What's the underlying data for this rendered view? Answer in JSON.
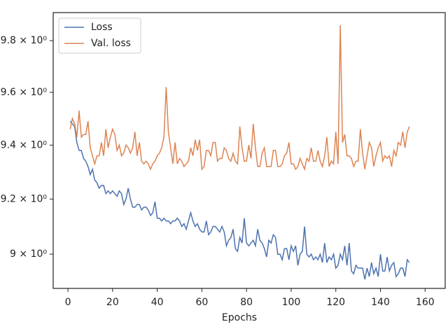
{
  "chart_data": {
    "type": "line",
    "x_label": "Epochs",
    "log_y": true,
    "grid": false,
    "legend": "upper left",
    "x": [
      1,
      2,
      3,
      4,
      5,
      6,
      7,
      8,
      9,
      10,
      11,
      12,
      13,
      14,
      15,
      16,
      17,
      18,
      19,
      20,
      21,
      22,
      23,
      24,
      25,
      26,
      27,
      28,
      29,
      30,
      31,
      32,
      33,
      34,
      35,
      36,
      37,
      38,
      39,
      40,
      41,
      42,
      43,
      44,
      45,
      46,
      47,
      48,
      49,
      50,
      51,
      52,
      53,
      54,
      55,
      56,
      57,
      58,
      59,
      60,
      61,
      62,
      63,
      64,
      65,
      66,
      67,
      68,
      69,
      70,
      71,
      72,
      73,
      74,
      75,
      76,
      77,
      78,
      79,
      80,
      81,
      82,
      83,
      84,
      85,
      86,
      87,
      88,
      89,
      90,
      91,
      92,
      93,
      94,
      95,
      96,
      97,
      98,
      99,
      100,
      101,
      102,
      103,
      104,
      105,
      106,
      107,
      108,
      109,
      110,
      111,
      112,
      113,
      114,
      115,
      116,
      117,
      118,
      119,
      120,
      121,
      122,
      123,
      124,
      125,
      126,
      127,
      128,
      129,
      130,
      131,
      132,
      133,
      134,
      135,
      136,
      137,
      138,
      139,
      140,
      141,
      142,
      143,
      144,
      145,
      146,
      147,
      148,
      149,
      150,
      151,
      152,
      153
    ],
    "series": [
      {
        "name": "Loss",
        "color": "#4c72b0",
        "values": [
          9.49,
          9.48,
          9.47,
          9.41,
          9.38,
          9.38,
          9.35,
          9.34,
          9.32,
          9.29,
          9.31,
          9.27,
          9.26,
          9.24,
          9.25,
          9.25,
          9.22,
          9.23,
          9.22,
          9.23,
          9.22,
          9.21,
          9.23,
          9.22,
          9.18,
          9.2,
          9.24,
          9.2,
          9.17,
          9.17,
          9.18,
          9.18,
          9.16,
          9.17,
          9.17,
          9.16,
          9.14,
          9.15,
          9.19,
          9.13,
          9.13,
          9.12,
          9.13,
          9.12,
          9.12,
          9.11,
          9.12,
          9.12,
          9.13,
          9.12,
          9.1,
          9.11,
          9.09,
          9.12,
          9.15,
          9.12,
          9.1,
          9.11,
          9.09,
          9.08,
          9.08,
          9.12,
          9.07,
          9.08,
          9.1,
          9.1,
          9.09,
          9.08,
          9.1,
          9.08,
          9.03,
          9.05,
          9.06,
          9.09,
          9.02,
          9.01,
          9.06,
          9.04,
          9.13,
          9.04,
          9.03,
          9.04,
          9.05,
          9.03,
          9.09,
          9.05,
          9.04,
          9.02,
          8.99,
          9.05,
          9.04,
          9.07,
          9.06,
          9.0,
          9.0,
          8.98,
          9.02,
          9.02,
          8.98,
          9.03,
          9.01,
          9.03,
          8.96,
          9.0,
          9.01,
          9.1,
          9.0,
          8.99,
          9.0,
          8.98,
          8.99,
          8.98,
          9.0,
          8.97,
          9.04,
          8.97,
          8.99,
          8.98,
          9.0,
          8.95,
          8.96,
          9.0,
          8.98,
          9.03,
          8.96,
          9.04,
          8.94,
          8.93,
          8.96,
          8.95,
          8.95,
          8.95,
          8.91,
          8.95,
          8.92,
          8.97,
          8.93,
          8.95,
          8.92,
          9.0,
          8.94,
          8.94,
          8.99,
          8.94,
          8.96,
          8.97,
          8.92,
          8.93,
          8.95,
          8.95,
          8.92,
          8.98,
          8.97
        ]
      },
      {
        "name": "Val. loss",
        "color": "#dd8452",
        "values": [
          9.46,
          9.5,
          9.48,
          9.43,
          9.53,
          9.43,
          9.44,
          9.44,
          9.49,
          9.39,
          9.36,
          9.33,
          9.36,
          9.36,
          9.41,
          9.36,
          9.46,
          9.39,
          9.43,
          9.46,
          9.44,
          9.38,
          9.4,
          9.36,
          9.37,
          9.4,
          9.39,
          9.37,
          9.39,
          9.45,
          9.36,
          9.41,
          9.34,
          9.33,
          9.34,
          9.33,
          9.31,
          9.33,
          9.34,
          9.36,
          9.37,
          9.39,
          9.43,
          9.62,
          9.45,
          9.39,
          9.33,
          9.41,
          9.33,
          9.35,
          9.34,
          9.32,
          9.33,
          9.34,
          9.39,
          9.36,
          9.42,
          9.38,
          9.42,
          9.31,
          9.32,
          9.38,
          9.38,
          9.36,
          9.41,
          9.41,
          9.34,
          9.35,
          9.35,
          9.39,
          9.38,
          9.35,
          9.34,
          9.37,
          9.34,
          9.33,
          9.47,
          9.39,
          9.34,
          9.34,
          9.4,
          9.35,
          9.48,
          9.39,
          9.32,
          9.32,
          9.37,
          9.39,
          9.32,
          9.32,
          9.32,
          9.38,
          9.38,
          9.32,
          9.32,
          9.33,
          9.36,
          9.37,
          9.41,
          9.33,
          9.33,
          9.31,
          9.32,
          9.35,
          9.33,
          9.31,
          9.35,
          9.34,
          9.39,
          9.34,
          9.34,
          9.38,
          9.34,
          9.32,
          9.36,
          9.43,
          9.32,
          9.34,
          9.33,
          9.45,
          9.33,
          9.86,
          9.41,
          9.44,
          9.36,
          9.36,
          9.35,
          9.32,
          9.34,
          9.34,
          9.46,
          9.37,
          9.31,
          9.36,
          9.41,
          9.39,
          9.32,
          9.36,
          9.39,
          9.41,
          9.34,
          9.36,
          9.35,
          9.36,
          9.32,
          9.38,
          9.36,
          9.41,
          9.4,
          9.45,
          9.39,
          9.45,
          9.47
        ]
      }
    ],
    "xlim": [
      -6.6,
      169
    ],
    "xticks": [
      0,
      20,
      40,
      60,
      80,
      100,
      120,
      140,
      160
    ],
    "ylim": [
      8.878,
      9.91
    ],
    "yticks": [
      {
        "value": 9.0,
        "label": "9 × 10⁰"
      },
      {
        "value": 9.2,
        "label": "9.2 × 10⁰"
      },
      {
        "value": 9.4,
        "label": "9.4 × 10⁰"
      },
      {
        "value": 9.6,
        "label": "9.6 × 10⁰"
      },
      {
        "value": 9.8,
        "label": "9.8 × 10⁰"
      }
    ]
  }
}
